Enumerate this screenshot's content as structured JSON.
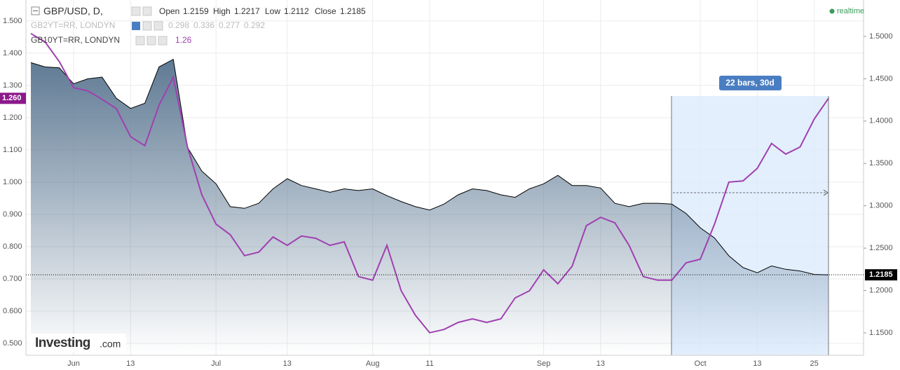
{
  "chart_data": {
    "type": "line",
    "categories": [
      null,
      null,
      null,
      "Jun",
      null,
      null,
      null,
      "13",
      null,
      null,
      null,
      null,
      null,
      "Jul",
      null,
      null,
      null,
      null,
      "13",
      null,
      null,
      null,
      null,
      null,
      "Aug",
      null,
      null,
      null,
      "11",
      null,
      null,
      null,
      null,
      null,
      null,
      null,
      "Sep",
      null,
      null,
      null,
      "13",
      null,
      null,
      null,
      null,
      null,
      null,
      "Oct",
      null,
      null,
      null,
      "13",
      null,
      null,
      null,
      "25",
      null
    ],
    "series": [
      {
        "name": "GBP/USD, D,",
        "type": "area",
        "axis": "y2",
        "color": "#000000",
        "fill": "#5f7a94",
        "ohlc_names": [
          "Open",
          "High",
          "Low",
          "Close"
        ],
        "ohlc": [
          1.2159,
          1.2217,
          1.2112,
          1.2185
        ],
        "values": [
          1.469,
          1.464,
          1.463,
          1.444,
          1.45,
          1.452,
          1.427,
          1.415,
          1.421,
          1.464,
          1.473,
          1.369,
          1.341,
          1.326,
          1.299,
          1.297,
          1.303,
          1.32,
          1.332,
          1.324,
          1.32,
          1.316,
          1.32,
          1.318,
          1.32,
          1.312,
          1.305,
          1.299,
          1.295,
          1.302,
          1.313,
          1.32,
          1.318,
          1.313,
          1.31,
          1.32,
          1.326,
          1.336,
          1.324,
          1.324,
          1.321,
          1.303,
          1.299,
          1.303,
          1.303,
          1.302,
          1.291,
          1.274,
          1.262,
          1.241,
          1.227,
          1.221,
          1.229,
          1.225,
          1.223,
          1.219,
          1.2185
        ]
      },
      {
        "name": "GB10YT=RR, LONDYN",
        "type": "line",
        "axis": "y",
        "color": "#a040b0",
        "last_value_label": "1.260",
        "values": [
          1.461,
          1.435,
          1.374,
          1.293,
          1.283,
          1.257,
          1.228,
          1.141,
          1.113,
          1.239,
          1.326,
          1.109,
          0.961,
          0.87,
          0.837,
          0.772,
          0.783,
          0.83,
          0.804,
          0.833,
          0.826,
          0.804,
          0.815,
          0.707,
          0.696,
          0.804,
          0.663,
          0.587,
          0.533,
          0.543,
          0.565,
          0.576,
          0.565,
          0.576,
          0.641,
          0.663,
          0.728,
          0.685,
          0.739,
          0.865,
          0.891,
          0.874,
          0.804,
          0.707,
          0.696,
          0.696,
          0.75,
          0.761,
          0.87,
          1.0,
          1.004,
          1.043,
          1.12,
          1.087,
          1.109,
          1.196,
          1.26
        ]
      }
    ],
    "hidden_study": {
      "name": "GB2YT=RR, LONDYN",
      "ohlc": [
        0.298,
        0.336,
        0.277,
        0.292
      ]
    },
    "status": "realtime",
    "measurement": "22 bars, 30d",
    "brand": "Investing",
    "brand_suffix": ".com",
    "ylim": [
      0.463,
      1.565
    ],
    "yticks": [
      {
        "value": 0.5,
        "label": "0.500"
      },
      {
        "value": 0.6,
        "label": "0.600"
      },
      {
        "value": 0.7,
        "label": "0.700"
      },
      {
        "value": 0.8,
        "label": "0.800"
      },
      {
        "value": 0.9,
        "label": "0.900"
      },
      {
        "value": 1.0,
        "label": "1.000"
      },
      {
        "value": 1.1,
        "label": "1.100"
      },
      {
        "value": 1.2,
        "label": "1.200"
      },
      {
        "value": 1.3,
        "label": "1.300"
      },
      {
        "value": 1.4,
        "label": "1.400"
      },
      {
        "value": 1.5,
        "label": "1.500"
      }
    ],
    "y2lim": [
      1.1235,
      1.543
    ],
    "y2ticks": [
      {
        "value": 1.15,
        "label": "1.1500"
      },
      {
        "value": 1.2,
        "label": "1.2000"
      },
      {
        "value": 1.25,
        "label": "1.2500"
      },
      {
        "value": 1.3,
        "label": "1.3000"
      },
      {
        "value": 1.35,
        "label": "1.3500"
      },
      {
        "value": 1.4,
        "label": "1.4000"
      },
      {
        "value": 1.45,
        "label": "1.4500"
      },
      {
        "value": 1.5,
        "label": "1.5000"
      }
    ],
    "grid": true
  }
}
